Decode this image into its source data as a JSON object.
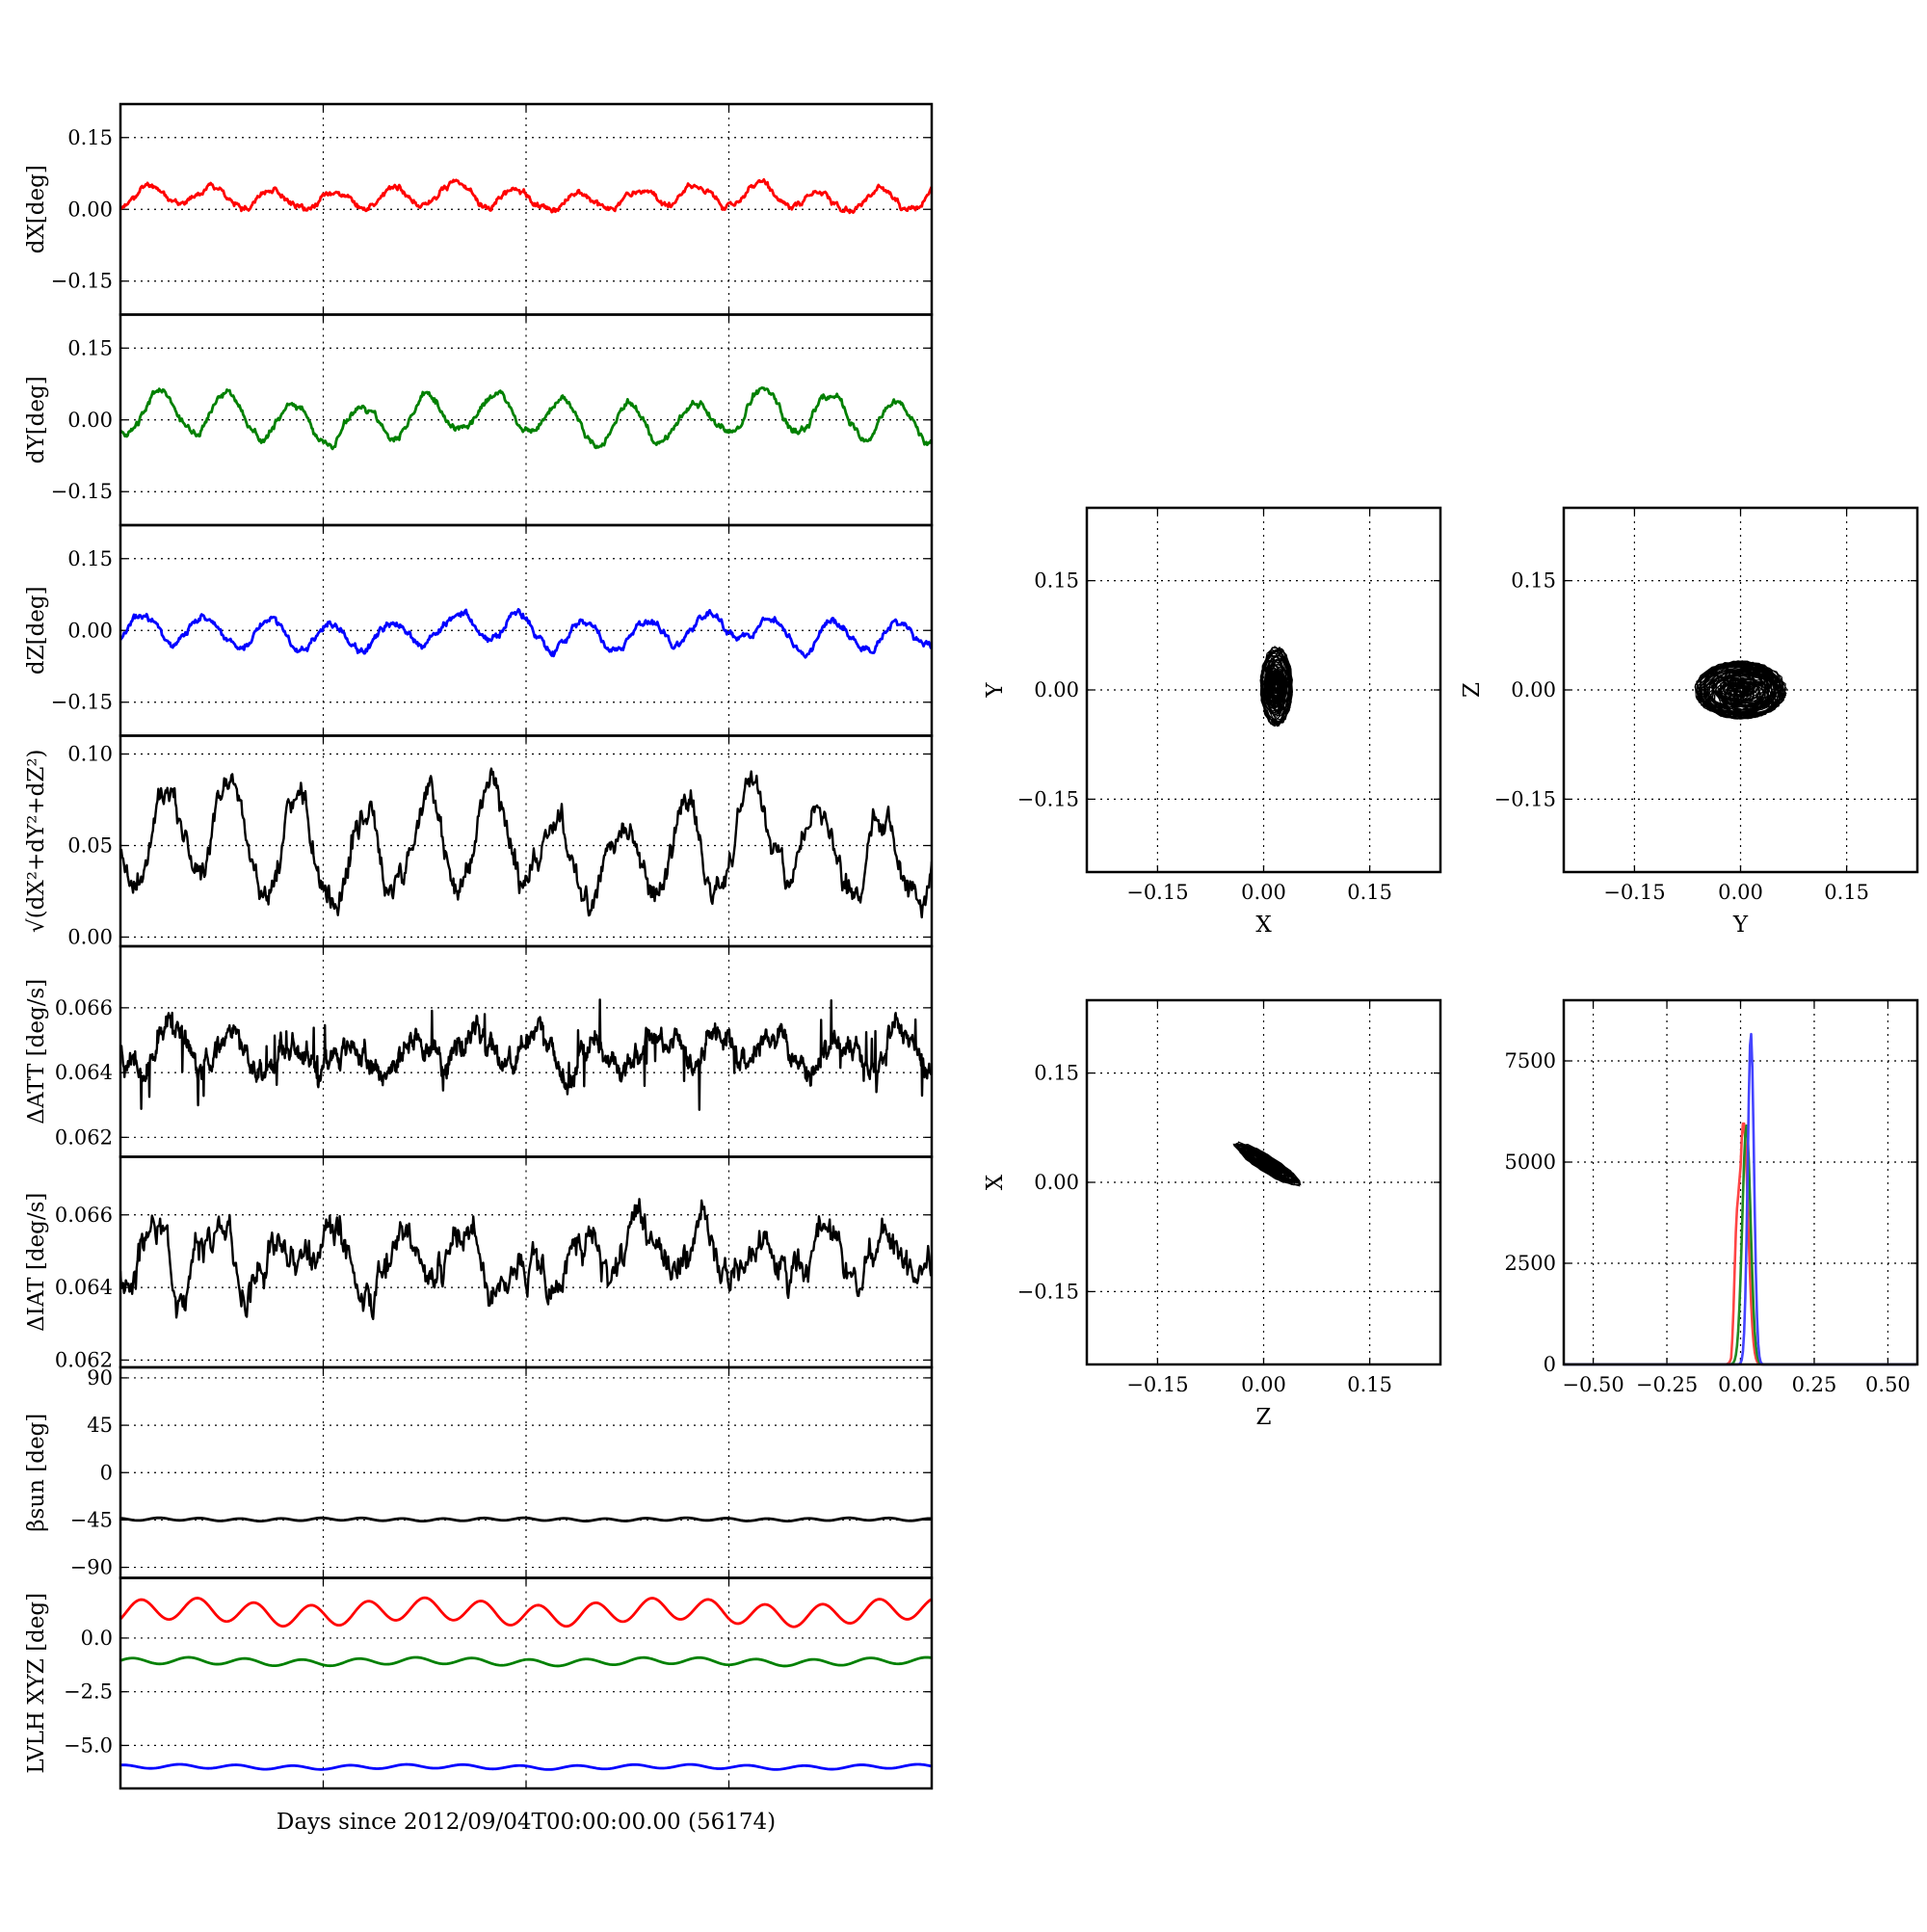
{
  "chart_data": [
    {
      "id": "dx",
      "type": "line",
      "ylabel": "dX[deg]",
      "ylim": [
        -0.22,
        0.22
      ],
      "yticks": [
        0.15,
        0.0,
        -0.15
      ],
      "ytick_labels": [
        "0.15",
        "0.00",
        "−0.15"
      ],
      "xlim": [
        0,
        40
      ],
      "xticks": [
        0,
        10,
        20,
        30,
        40
      ],
      "grid": true,
      "color": "#ff0000",
      "signal": {
        "mean": 0.025,
        "amp": 0.022,
        "period": 3.0,
        "noise": 0.008,
        "seed": 11
      },
      "series": [
        {
          "values_summary": "oscillates between about -0.03 and 0.07"
        }
      ]
    },
    {
      "id": "dy",
      "type": "line",
      "ylabel": "dY[deg]",
      "ylim": [
        -0.22,
        0.22
      ],
      "yticks": [
        0.15,
        0.0,
        -0.15
      ],
      "ytick_labels": [
        "0.15",
        "0.00",
        "−0.15"
      ],
      "xlim": [
        0,
        40
      ],
      "xticks": [
        0,
        10,
        20,
        30,
        40
      ],
      "grid": true,
      "color": "#008000",
      "signal": {
        "mean": 0.005,
        "amp": 0.04,
        "period": 3.3,
        "noise": 0.01,
        "seed": 23
      },
      "series": [
        {
          "values_summary": "oscillates between about -0.07 and 0.08"
        }
      ]
    },
    {
      "id": "dz",
      "type": "line",
      "ylabel": "dZ[deg]",
      "ylim": [
        -0.22,
        0.22
      ],
      "yticks": [
        0.15,
        0.0,
        -0.15
      ],
      "ytick_labels": [
        "0.15",
        "0.00",
        "−0.15"
      ],
      "xlim": [
        0,
        40
      ],
      "xticks": [
        0,
        10,
        20,
        30,
        40
      ],
      "grid": true,
      "color": "#0000ff",
      "signal": {
        "mean": -0.005,
        "amp": 0.03,
        "period": 3.1,
        "noise": 0.01,
        "seed": 37
      },
      "series": [
        {
          "values_summary": "oscillates between about -0.07 and 0.06"
        }
      ]
    },
    {
      "id": "mag",
      "type": "line",
      "ylabel": "√(dX²+dY²+dZ²)",
      "ylim": [
        -0.005,
        0.11
      ],
      "yticks": [
        0.1,
        0.05,
        0.0
      ],
      "ytick_labels": [
        "0.10",
        "0.05",
        "0.00"
      ],
      "xlim": [
        0,
        40
      ],
      "xticks": [
        0,
        10,
        20,
        30,
        40
      ],
      "grid": true,
      "color": "#000000",
      "signal": {
        "mean": 0.048,
        "amp": 0.025,
        "period": 3.2,
        "noise": 0.01,
        "seed": 41
      },
      "series": [
        {
          "values_summary": "varies between about 0.005 and 0.095"
        }
      ]
    },
    {
      "id": "datt",
      "type": "line",
      "ylabel": "ΔATT [deg/s]",
      "ylim": [
        0.0614,
        0.0679
      ],
      "yticks": [
        0.066,
        0.064,
        0.062
      ],
      "ytick_labels": [
        "0.066",
        "0.064",
        "0.062"
      ],
      "xlim": [
        0,
        40
      ],
      "xticks": [
        0,
        10,
        20,
        30,
        40
      ],
      "grid": true,
      "color": "#000000",
      "signal": {
        "mean": 0.0646,
        "amp": 0.0006,
        "period": 3.0,
        "noise": 0.0004,
        "seed": 53,
        "spikes": true
      },
      "series": [
        {
          "values_summary": "band between about 0.0618 and 0.0666 with spikes to 0.0679"
        }
      ]
    },
    {
      "id": "diat",
      "type": "line",
      "ylabel": "ΔIAT [deg/s]",
      "ylim": [
        0.0618,
        0.0676
      ],
      "yticks": [
        0.066,
        0.064,
        0.062
      ],
      "ytick_labels": [
        "0.066",
        "0.064",
        "0.062"
      ],
      "xlim": [
        0,
        40
      ],
      "xticks": [
        0,
        10,
        20,
        30,
        40
      ],
      "grid": true,
      "color": "#000000",
      "signal": {
        "mean": 0.0648,
        "amp": 0.0007,
        "period": 3.0,
        "noise": 0.0006,
        "seed": 67
      },
      "series": [
        {
          "values_summary": "varies between about 0.0625 and 0.0670"
        }
      ]
    },
    {
      "id": "beta",
      "type": "line",
      "ylabel": "βsun [deg]",
      "ylim": [
        -100,
        100
      ],
      "yticks": [
        90,
        45,
        0,
        -45,
        -90
      ],
      "ytick_labels": [
        "90",
        "45",
        "0",
        "−45",
        "−90"
      ],
      "xlim": [
        0,
        40
      ],
      "xticks": [
        0,
        10,
        20,
        30,
        40
      ],
      "grid": true,
      "color": "#000000",
      "signal": {
        "mean": -44.5,
        "amp": 1.2,
        "period": 2.0,
        "noise": 0.0,
        "seed": 71
      },
      "series": [
        {
          "values_summary": "nearly constant at about -44.5"
        }
      ]
    },
    {
      "id": "lvlh",
      "type": "line",
      "ylabel": "LVLH XYZ [deg]",
      "xlabel": "Days since 2012/09/04T00:00:00.00 (56174)",
      "ylim": [
        -7.0,
        2.8
      ],
      "yticks": [
        0.0,
        -2.5,
        -5.0
      ],
      "ytick_labels": [
        "0.0",
        "−2.5",
        "−5.0"
      ],
      "xlim": [
        0,
        40
      ],
      "xticks": [
        0,
        10,
        20,
        30,
        40
      ],
      "grid": true,
      "series": [
        {
          "color": "#ff0000",
          "signal": {
            "mean": 1.2,
            "amp": 0.5,
            "period": 2.8,
            "noise": 0.0,
            "seed": 81
          }
        },
        {
          "color": "#008000",
          "signal": {
            "mean": -1.1,
            "amp": 0.15,
            "period": 2.8,
            "noise": 0.0,
            "seed": 82
          }
        },
        {
          "color": "#0000ff",
          "signal": {
            "mean": -6.0,
            "amp": 0.09,
            "period": 2.8,
            "noise": 0.0,
            "seed": 83
          }
        }
      ]
    },
    {
      "id": "xy",
      "type": "scatter",
      "xlabel": "X",
      "ylabel": "Y",
      "xlim": [
        -0.25,
        0.25
      ],
      "ylim": [
        -0.25,
        0.25
      ],
      "xticks": [
        -0.15,
        0.0,
        0.15
      ],
      "yticks": [
        0.15,
        0.0,
        -0.15
      ],
      "xtick_labels": [
        "−0.15",
        "0.00",
        "0.15"
      ],
      "ytick_labels": [
        "0.15",
        "0.00",
        "−0.15"
      ],
      "grid": true,
      "color": "#000000",
      "cloud": {
        "cx": 0.018,
        "cy": 0.005,
        "rx": 0.023,
        "ry": 0.055,
        "rot": 0.0,
        "seed": 91
      }
    },
    {
      "id": "yz",
      "type": "scatter",
      "xlabel": "Y",
      "ylabel": "Z",
      "xlim": [
        -0.25,
        0.25
      ],
      "ylim": [
        -0.25,
        0.25
      ],
      "xticks": [
        -0.15,
        0.0,
        0.15
      ],
      "yticks": [
        0.15,
        0.0,
        -0.15
      ],
      "xtick_labels": [
        "−0.15",
        "0.00",
        "0.15"
      ],
      "ytick_labels": [
        "0.15",
        "0.00",
        "−0.15"
      ],
      "grid": true,
      "color": "#000000",
      "cloud": {
        "cx": 0.0,
        "cy": 0.0,
        "rx": 0.065,
        "ry": 0.04,
        "rot": 0.0,
        "seed": 92
      }
    },
    {
      "id": "zx",
      "type": "scatter",
      "xlabel": "Z",
      "ylabel": "X",
      "xlim": [
        -0.25,
        0.25
      ],
      "ylim": [
        -0.25,
        0.25
      ],
      "xticks": [
        -0.15,
        0.0,
        0.15
      ],
      "yticks": [
        0.15,
        0.0,
        -0.15
      ],
      "xtick_labels": [
        "−0.15",
        "0.00",
        "0.15"
      ],
      "ytick_labels": [
        "0.15",
        "0.00",
        "−0.15"
      ],
      "grid": true,
      "color": "#000000",
      "cloud": {
        "cx": 0.005,
        "cy": 0.025,
        "rx": 0.055,
        "ry": 0.012,
        "rot": -0.55,
        "seed": 93
      }
    },
    {
      "id": "hist",
      "type": "line",
      "subtype": "histogram",
      "xlim": [
        -0.6,
        0.6
      ],
      "ylim": [
        0,
        9000
      ],
      "xticks": [
        -0.5,
        -0.25,
        0.0,
        0.25,
        0.5
      ],
      "yticks": [
        7500,
        5000,
        2500,
        0
      ],
      "xtick_labels": [
        "−0.50",
        "−0.25",
        "0.00",
        "0.25",
        "0.50"
      ],
      "ytick_labels": [
        "7500",
        "5000",
        "2500",
        "0"
      ],
      "grid": true,
      "series": [
        {
          "color": "#ff4444",
          "center": 0.01,
          "width": 0.022,
          "peak": 6000
        },
        {
          "color": "#228b22",
          "center": 0.02,
          "width": 0.02,
          "peak": 5900
        },
        {
          "color": "#4444ff",
          "center": 0.035,
          "width": 0.015,
          "peak": 8200
        }
      ]
    }
  ]
}
